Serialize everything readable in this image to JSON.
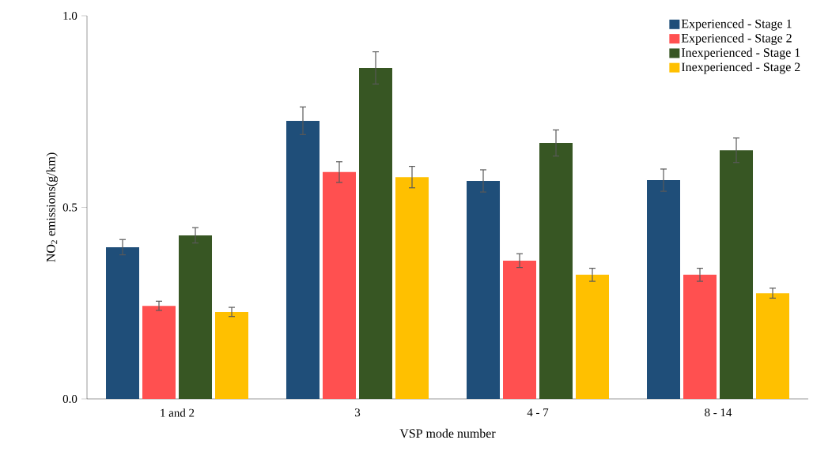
{
  "chart_data": {
    "type": "bar",
    "xlabel": "VSP mode number",
    "ylabel": "NO$_{2}$ emissions(g/km)",
    "categories": [
      "1 and 2",
      "3",
      "4 - 7",
      "8 - 14"
    ],
    "series": [
      {
        "name": "Experienced - Stage 1",
        "color": "#1f4e79",
        "values": [
          0.396,
          0.726,
          0.569,
          0.571
        ],
        "errors": [
          0.02,
          0.036,
          0.029,
          0.029
        ]
      },
      {
        "name": "Experienced - Stage 2",
        "color": "#ff5050",
        "values": [
          0.243,
          0.592,
          0.361,
          0.324
        ],
        "errors": [
          0.012,
          0.027,
          0.018,
          0.017
        ]
      },
      {
        "name": "Inexperienced - Stage 1",
        "color": "#375623",
        "values": [
          0.427,
          0.864,
          0.668,
          0.649
        ],
        "errors": [
          0.02,
          0.042,
          0.034,
          0.032
        ]
      },
      {
        "name": "Inexperienced - Stage 2",
        "color": "#ffc000",
        "values": [
          0.227,
          0.579,
          0.324,
          0.276
        ],
        "errors": [
          0.012,
          0.028,
          0.017,
          0.013
        ]
      }
    ],
    "ylim": [
      0,
      1
    ],
    "yticks": [
      {
        "value": 0,
        "label": "0.0"
      },
      {
        "value": 0.5,
        "label": "0.5"
      },
      {
        "value": 1,
        "label": "1.0"
      }
    ],
    "grid": false,
    "legend": "top right"
  }
}
